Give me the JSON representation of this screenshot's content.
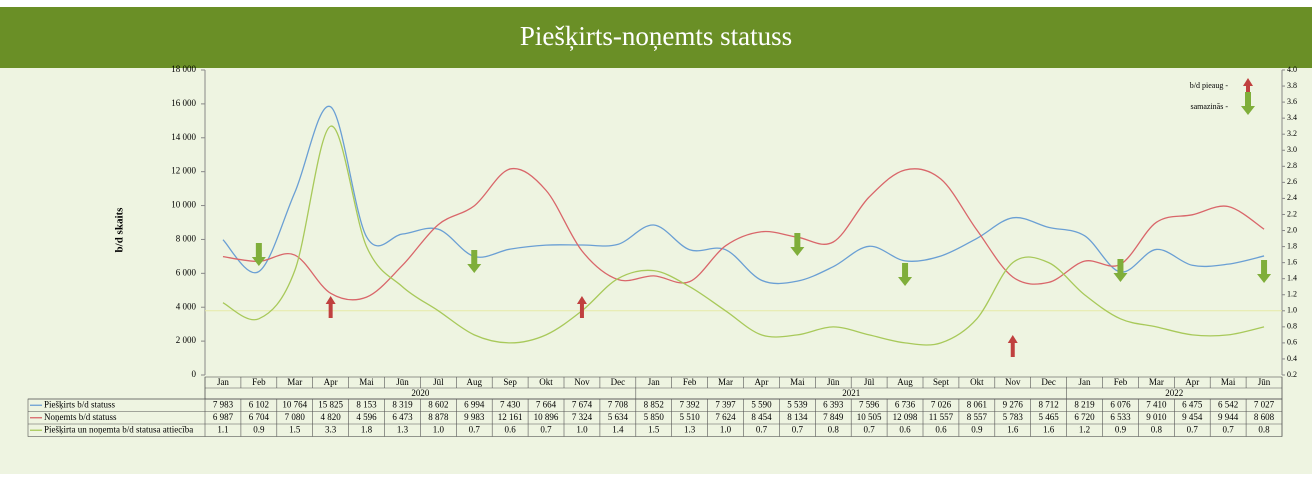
{
  "chart_data": {
    "type": "line",
    "title": "Piešķirts-noņemts statuss",
    "y_label": "b/d skaits",
    "legend_up": "b/d pieaug -",
    "legend_down": "samazinās -",
    "years": [
      "2020",
      "2021",
      "2022"
    ],
    "categories": [
      "Jan",
      "Feb",
      "Mar",
      "Apr",
      "Mai",
      "Jūn",
      "Jūl",
      "Aug",
      "Sep",
      "Okt",
      "Nov",
      "Dec",
      "Jan",
      "Feb",
      "Mar",
      "Apr",
      "Mai",
      "Jūn",
      "Jūl",
      "Aug",
      "Sept",
      "Okt",
      "Nov",
      "Dec",
      "Jan",
      "Feb",
      "Mar",
      "Apr",
      "Mai",
      "Jūn"
    ],
    "ylim": [
      0,
      18000
    ],
    "yticks": [
      0,
      {
        "value": 2000,
        "label": "2 000"
      },
      {
        "value": 4000,
        "label": "4 000"
      },
      {
        "value": 6000,
        "label": "6 000"
      },
      {
        "value": 8000,
        "label": "8 000"
      },
      {
        "value": 10000,
        "label": "10 000"
      },
      {
        "value": 12000,
        "label": "12 000"
      },
      {
        "value": 14000,
        "label": "14 000"
      },
      {
        "value": 16000,
        "label": "16 000"
      },
      {
        "value": 18000,
        "label": "18 000"
      }
    ],
    "y2lim": [
      0.2,
      4.0
    ],
    "y2ticks": [
      0.2,
      0.4,
      0.6,
      0.8,
      {
        "value": 1,
        "label": "1.0"
      },
      1.2,
      1.4,
      1.6,
      1.8,
      {
        "value": 2,
        "label": "2.0"
      },
      2.2,
      2.4,
      2.6,
      2.8,
      {
        "value": 3,
        "label": "3.0"
      },
      3.2,
      3.4,
      3.6,
      3.8,
      {
        "value": 4,
        "label": "4.0"
      }
    ],
    "series": [
      {
        "name": "Piešķirts b/d statuss",
        "color": "#6a9fd4",
        "values": [
          7983,
          6102,
          10764,
          15825,
          8153,
          8319,
          8602,
          6994,
          7430,
          7664,
          7674,
          7708,
          8852,
          7392,
          7397,
          5590,
          5539,
          6393,
          7596,
          6736,
          7026,
          8061,
          9276,
          8712,
          8219,
          6076,
          7410,
          6475,
          6542,
          7027
        ],
        "value_labels": [
          "7 983",
          "6 102",
          "10 764",
          "15 825",
          "8 153",
          "8 319",
          "8 602",
          "6 994",
          "7 430",
          "7 664",
          "7 674",
          "7 708",
          "8 852",
          "7 392",
          "7 397",
          "5 590",
          "5 539",
          "6 393",
          "7 596",
          "6 736",
          "7 026",
          "8 061",
          "9 276",
          "8 712",
          "8 219",
          "6 076",
          "7 410",
          "6 475",
          "6 542",
          "7 027"
        ]
      },
      {
        "name": "Noņemts b/d statuss",
        "color": "#d9666a",
        "values": [
          6987,
          6704,
          7080,
          4820,
          4596,
          6473,
          8878,
          9983,
          12161,
          10896,
          7324,
          5634,
          5850,
          5510,
          7624,
          8454,
          8134,
          7849,
          10505,
          12098,
          11557,
          8557,
          5783,
          5465,
          6720,
          6533,
          9010,
          9454,
          9944,
          8608
        ],
        "value_labels": [
          "6 987",
          "6 704",
          "7 080",
          "4 820",
          "4 596",
          "6 473",
          "8 878",
          "9 983",
          "12 161",
          "10 896",
          "7 324",
          "5 634",
          "5 850",
          "5 510",
          "7 624",
          "8 454",
          "8 134",
          "7 849",
          "10 505",
          "12 098",
          "11 557",
          "8 557",
          "5 783",
          "5 465",
          "6 720",
          "6 533",
          "9 010",
          "9 454",
          "9 944",
          "8 608"
        ]
      },
      {
        "name": "Piešķirta un noņemta b/d statusa attiecība",
        "color": "#a8c95a",
        "axis": "y2",
        "values": [
          1.1,
          0.9,
          1.5,
          3.3,
          1.8,
          1.3,
          1.0,
          0.7,
          0.6,
          0.7,
          1.0,
          1.4,
          1.5,
          1.3,
          1.0,
          0.7,
          0.7,
          0.8,
          0.7,
          0.6,
          0.6,
          0.9,
          1.6,
          1.6,
          1.2,
          0.9,
          0.8,
          0.7,
          0.7,
          0.8
        ],
        "value_labels": [
          "1.1",
          "0.9",
          "1.5",
          "3.3",
          "1.8",
          "1.3",
          "1.0",
          "0.7",
          "0.6",
          "0.7",
          "1.0",
          "1.4",
          "1.5",
          "1.3",
          "1.0",
          "0.7",
          "0.7",
          "0.8",
          "0.7",
          "0.6",
          "0.6",
          "0.9",
          "1.6",
          "1.6",
          "1.2",
          "0.9",
          "0.8",
          "0.7",
          "0.7",
          "0.8"
        ]
      }
    ]
  }
}
